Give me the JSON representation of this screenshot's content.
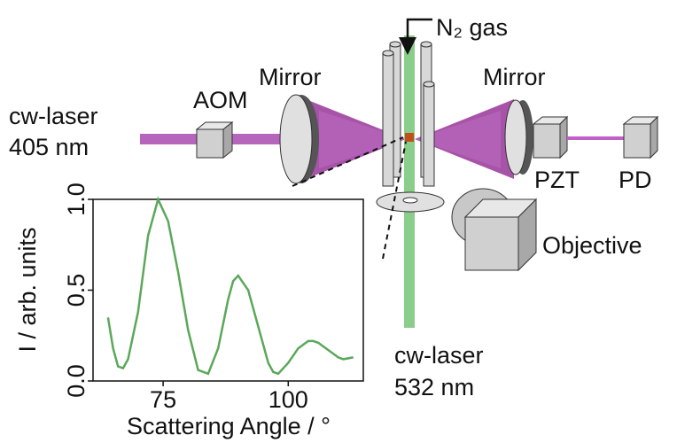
{
  "labels": {
    "left_laser": "cw-laser",
    "left_wavelength": "405 nm",
    "aom": "AOM",
    "mirror_left": "Mirror",
    "mirror_right": "Mirror",
    "gas": "N₂ gas",
    "pzt": "PZT",
    "pd": "PD",
    "objective": "Objective",
    "bottom_laser": "cw-laser",
    "bottom_wavelength": "532 nm"
  },
  "chart_data": {
    "type": "line",
    "xlabel": "Scattering Angle / °",
    "ylabel": "I / arb. units",
    "x": [
      64,
      65,
      66,
      67,
      68,
      70,
      72,
      74,
      76,
      78,
      80,
      82,
      84,
      86,
      88,
      89,
      90,
      92,
      94,
      96,
      97,
      98,
      100,
      102,
      104,
      105,
      106,
      108,
      110,
      111,
      113
    ],
    "values": [
      0.35,
      0.18,
      0.08,
      0.07,
      0.12,
      0.38,
      0.8,
      1.0,
      0.88,
      0.6,
      0.28,
      0.06,
      0.04,
      0.18,
      0.45,
      0.55,
      0.58,
      0.5,
      0.3,
      0.1,
      0.05,
      0.04,
      0.1,
      0.18,
      0.22,
      0.22,
      0.21,
      0.17,
      0.13,
      0.12,
      0.13
    ],
    "color": "#5aa85a",
    "xlim": [
      61,
      115
    ],
    "ylim": [
      0,
      1
    ],
    "xticks": [
      75,
      100
    ],
    "yticks": [
      {
        "value": 0,
        "label": "0.0"
      },
      {
        "value": 0.5,
        "label": "0.5"
      },
      {
        "value": 1,
        "label": "1.0"
      }
    ]
  }
}
